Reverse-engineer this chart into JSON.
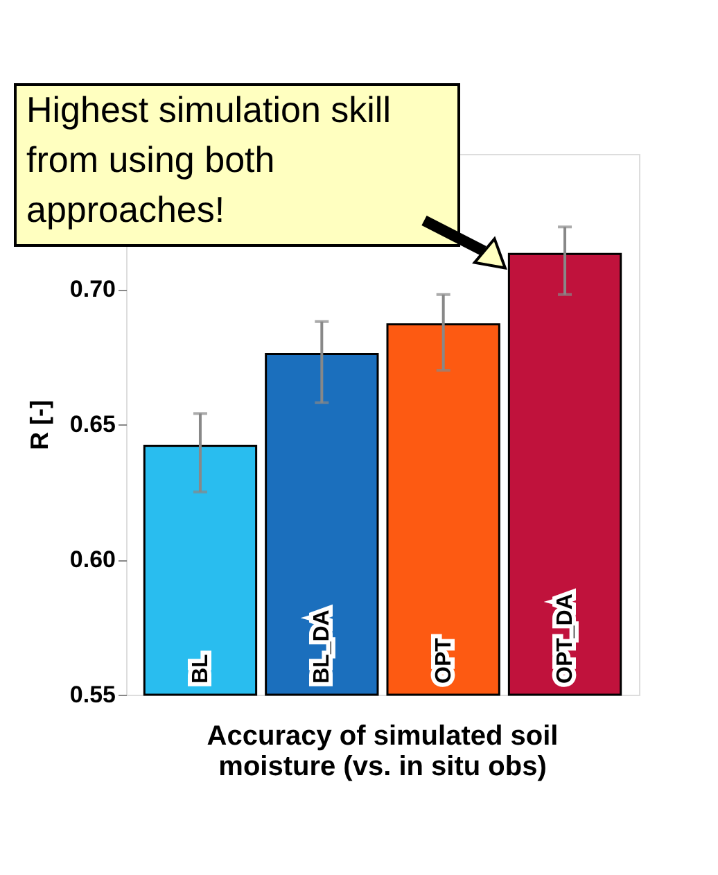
{
  "chart_data": {
    "type": "bar",
    "ylabel": "R [-]",
    "xlabel": "Accuracy of simulated soil moisture (vs. in situ obs)",
    "categories": [
      "BL",
      "BL_DA",
      "OPT",
      "OPT_DA"
    ],
    "values": [
      0.642,
      0.676,
      0.687,
      0.713
    ],
    "colors": [
      "#29bdef",
      "#1b6fbd",
      "#fd5a12",
      "#c0123c"
    ],
    "errors": [
      [
        0.625,
        0.654
      ],
      [
        0.658,
        0.688
      ],
      [
        0.67,
        0.698
      ],
      [
        0.698,
        0.723
      ]
    ],
    "ylim": [
      0.55,
      0.75
    ],
    "yticks": [
      0.55,
      {
        "value": 0.6,
        "label": "0.60"
      },
      0.65,
      {
        "value": 0.7,
        "label": "0.70"
      }
    ],
    "grid": false,
    "tick_labels": "y",
    "annotations": [
      "Highest simulation skill from using both approaches!"
    ]
  }
}
